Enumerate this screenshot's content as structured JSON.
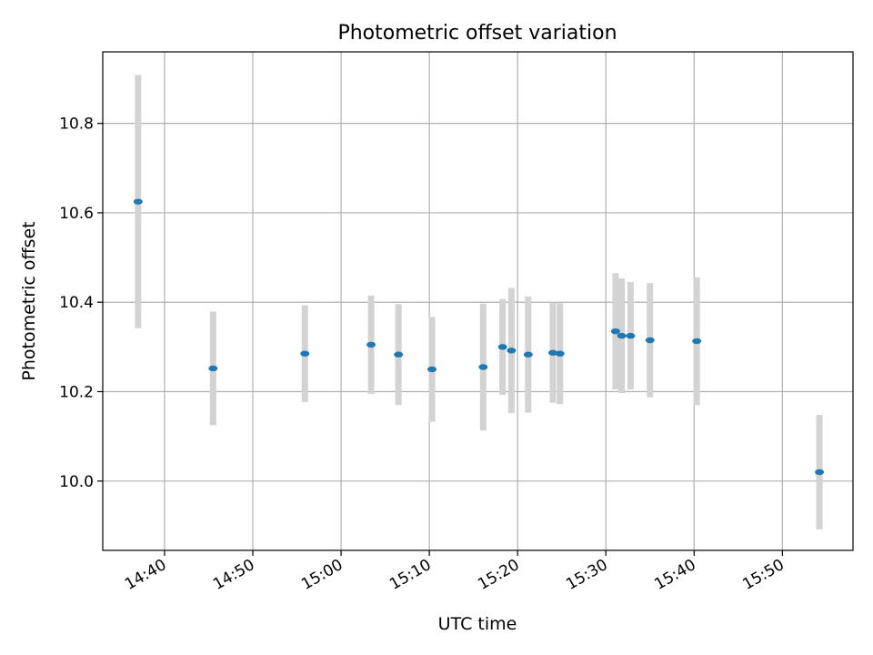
{
  "chart_data": {
    "type": "scatter",
    "title": "Photometric offset variation",
    "xlabel": "UTC time",
    "ylabel": "Photometric offset",
    "grid": true,
    "xlim": [
      "14:33",
      "15:58"
    ],
    "ylim": [
      9.845,
      10.96
    ],
    "x_ticks": [
      "14:40",
      "14:50",
      "15:00",
      "15:10",
      "15:20",
      "15:30",
      "15:40",
      "15:50"
    ],
    "y_ticks": [
      10.0,
      10.2,
      10.4,
      10.6,
      10.8
    ],
    "y_tick_labels": [
      "10.0",
      "10.2",
      "10.4",
      "10.6",
      "10.8"
    ],
    "marker_color": "#1f77b4",
    "errorbar_color": "#d3d3d3",
    "points": [
      {
        "x": "14:37",
        "y": 10.625,
        "yerr": 0.283
      },
      {
        "x": "14:45.5",
        "y": 10.252,
        "yerr": 0.127
      },
      {
        "x": "14:55.9",
        "y": 10.285,
        "yerr": 0.108
      },
      {
        "x": "15:03.4",
        "y": 10.305,
        "yerr": 0.11
      },
      {
        "x": "15:06.5",
        "y": 10.283,
        "yerr": 0.113
      },
      {
        "x": "15:10.3",
        "y": 10.25,
        "yerr": 0.117
      },
      {
        "x": "15:16.1",
        "y": 10.255,
        "yerr": 0.142
      },
      {
        "x": "15:18.3",
        "y": 10.3,
        "yerr": 0.107
      },
      {
        "x": "15:19.3",
        "y": 10.292,
        "yerr": 0.14
      },
      {
        "x": "15:21.2",
        "y": 10.283,
        "yerr": 0.13
      },
      {
        "x": "15:24.0",
        "y": 10.287,
        "yerr": 0.112
      },
      {
        "x": "15:24.8",
        "y": 10.285,
        "yerr": 0.113
      },
      {
        "x": "15:31.1",
        "y": 10.335,
        "yerr": 0.13
      },
      {
        "x": "15:31.8",
        "y": 10.325,
        "yerr": 0.128
      },
      {
        "x": "15:32.8",
        "y": 10.325,
        "yerr": 0.12
      },
      {
        "x": "15:35.0",
        "y": 10.315,
        "yerr": 0.128
      },
      {
        "x": "15:40.3",
        "y": 10.313,
        "yerr": 0.143
      },
      {
        "x": "15:54.2",
        "y": 10.02,
        "yerr": 0.128
      }
    ]
  }
}
